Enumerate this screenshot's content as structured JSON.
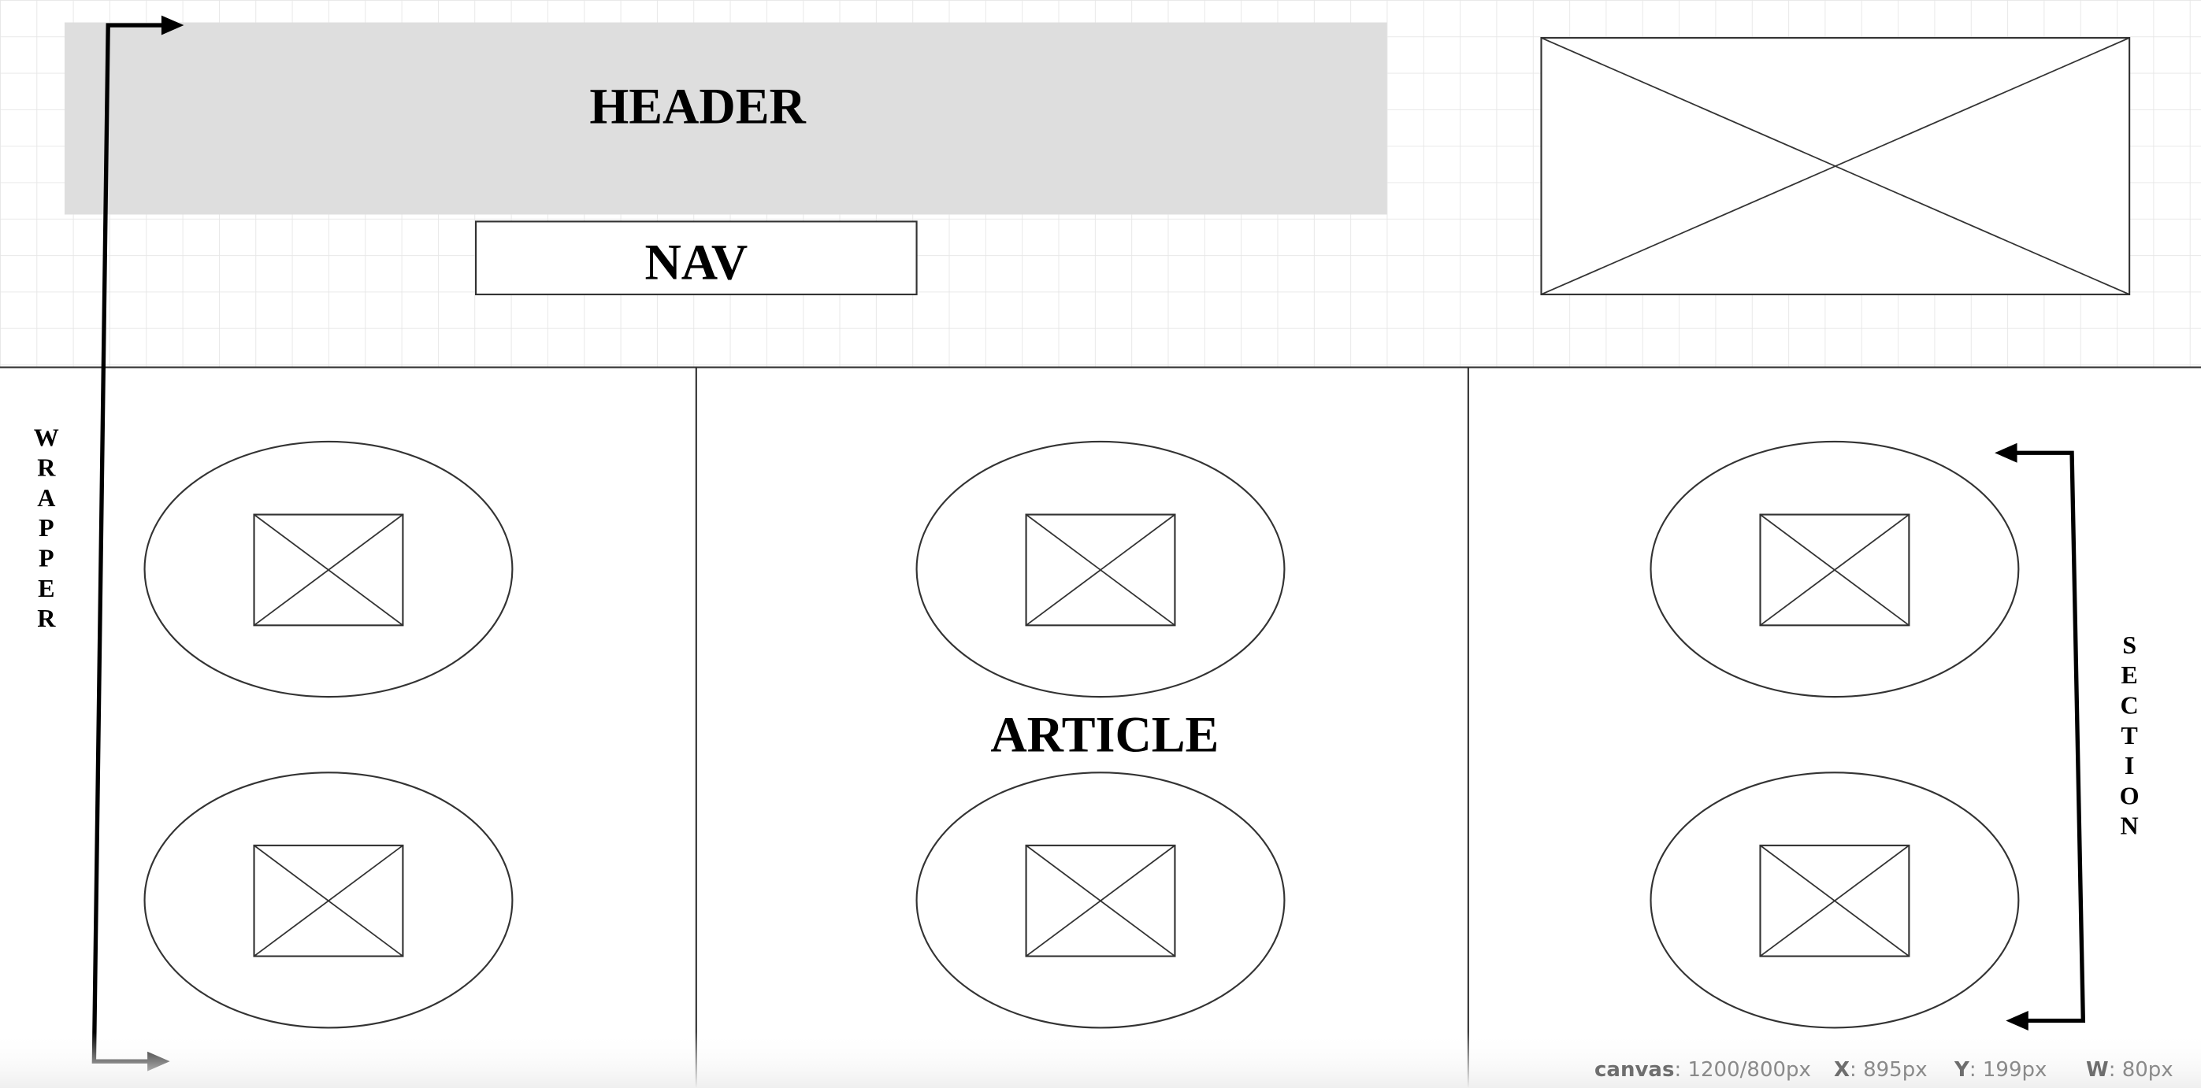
{
  "wireframe": {
    "header_label": "HEADER",
    "nav_label": "NAV",
    "article_label": "ARTICLE",
    "wrapper_label": "WRAPPER",
    "section_label": "SECTION"
  },
  "status": {
    "canvas_key": "canvas",
    "canvas_value": "1200/800px",
    "x_key": "X",
    "x_value": "895px",
    "y_key": "Y",
    "y_value": "199px",
    "w_key": "W",
    "w_value": "80px"
  },
  "colors": {
    "grid": "#e6e6e6",
    "header_fill": "#dedede",
    "stroke": "#333333",
    "arrow": "#000000",
    "status_text": "#8a8a8a"
  },
  "icons": {
    "image_placeholder": "crossed-box-icon",
    "arrow": "arrow-icon"
  }
}
